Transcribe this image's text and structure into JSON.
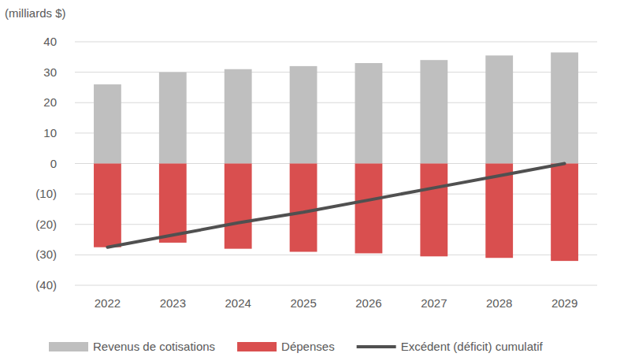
{
  "chart_data": {
    "type": "bar",
    "y_label": "(milliards $)",
    "categories": [
      "2022",
      "2023",
      "2024",
      "2025",
      "2026",
      "2027",
      "2028",
      "2029"
    ],
    "stacked": true,
    "grid": true,
    "legend": "bottom",
    "ylim": [
      -40,
      40
    ],
    "yticks": [
      {
        "value": -40,
        "label": "(40)"
      },
      {
        "value": -30,
        "label": "(30)"
      },
      {
        "value": -20,
        "label": "(20)"
      },
      {
        "value": -10,
        "label": "(10)"
      },
      0,
      10,
      20,
      30,
      40
    ],
    "series": [
      {
        "name": "Revenus de cotisations",
        "type": "bar",
        "color": "#bfbfbf",
        "values": [
          26,
          30,
          31,
          32,
          33,
          34,
          35.5,
          36.5
        ]
      },
      {
        "name": "Dépenses",
        "type": "bar",
        "color": "#d94f4f",
        "values": [
          -27.5,
          -26,
          -28,
          -29,
          -29.5,
          -30.5,
          -31,
          -32
        ]
      },
      {
        "name": "Excédent (déficit) cumulatif",
        "type": "line",
        "color": "#505050",
        "values": [
          -27.5,
          -23.5,
          -19.5,
          -16,
          -12,
          -8,
          -4,
          0
        ]
      }
    ]
  }
}
